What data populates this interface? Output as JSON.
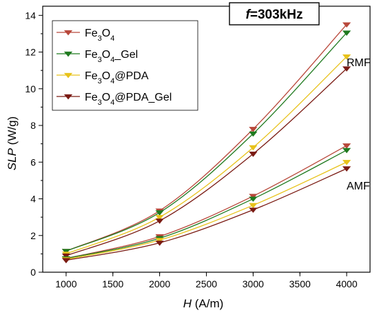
{
  "chart_data": {
    "type": "line",
    "title": "",
    "frequency_label": {
      "f": "f",
      "rest": "=303kHz"
    },
    "xlabel": {
      "var": "H",
      "unit": " (A/m)"
    },
    "ylabel": {
      "var": "SLP",
      "unit": " (W/g)"
    },
    "xlim": [
      750,
      4250
    ],
    "ylim": [
      0,
      14.5
    ],
    "x_ticks": [
      1000,
      1500,
      2000,
      2500,
      3000,
      3500,
      4000
    ],
    "y_ticks": [
      0,
      2,
      4,
      6,
      8,
      10,
      12,
      14
    ],
    "x": [
      1000,
      2000,
      3000,
      4000
    ],
    "series": [
      {
        "name": "Fe3O4",
        "legend_parts": [
          [
            "Fe",
            "n"
          ],
          [
            "3",
            "s"
          ],
          [
            "O",
            "n"
          ],
          [
            "4",
            "s"
          ]
        ],
        "color": "#b8473a",
        "group": "RMF",
        "values": [
          1.15,
          3.35,
          7.8,
          13.5
        ]
      },
      {
        "name": "Fe3O4_Gel",
        "legend_parts": [
          [
            "Fe",
            "n"
          ],
          [
            "3",
            "s"
          ],
          [
            "O",
            "n"
          ],
          [
            "4",
            "s"
          ],
          [
            "_Gel",
            "n"
          ]
        ],
        "color": "#1f7a1f",
        "group": "RMF",
        "values": [
          1.15,
          3.25,
          7.55,
          13.05
        ]
      },
      {
        "name": "Fe3O4@PDA",
        "legend_parts": [
          [
            "Fe",
            "n"
          ],
          [
            "3",
            "s"
          ],
          [
            "O",
            "n"
          ],
          [
            "4",
            "s"
          ],
          [
            "@PDA",
            "n"
          ]
        ],
        "color": "#e8c21a",
        "group": "RMF",
        "values": [
          1.0,
          3.0,
          6.8,
          11.75
        ]
      },
      {
        "name": "Fe3O4@PDA_Gel",
        "legend_parts": [
          [
            "Fe",
            "n"
          ],
          [
            "3",
            "s"
          ],
          [
            "O",
            "n"
          ],
          [
            "4",
            "s"
          ],
          [
            "@PDA_Gel",
            "n"
          ]
        ],
        "color": "#7a1a12",
        "group": "RMF",
        "values": [
          0.9,
          2.8,
          6.45,
          11.1
        ]
      },
      {
        "name": "Fe3O4",
        "color": "#b8473a",
        "group": "AMF",
        "values": [
          0.75,
          1.95,
          4.15,
          6.9
        ]
      },
      {
        "name": "Fe3O4_Gel",
        "color": "#1f7a1f",
        "group": "AMF",
        "values": [
          0.75,
          1.85,
          4.0,
          6.65
        ]
      },
      {
        "name": "Fe3O4@PDA",
        "color": "#e8c21a",
        "group": "AMF",
        "values": [
          0.7,
          1.75,
          3.65,
          6.0
        ]
      },
      {
        "name": "Fe3O4@PDA_Gel",
        "color": "#7a1a12",
        "group": "AMF",
        "values": [
          0.65,
          1.6,
          3.4,
          5.65
        ]
      }
    ],
    "annotations": {
      "rmf": "RMF",
      "amf": "AMF"
    },
    "legend_placement": "top-left",
    "grid": false
  }
}
